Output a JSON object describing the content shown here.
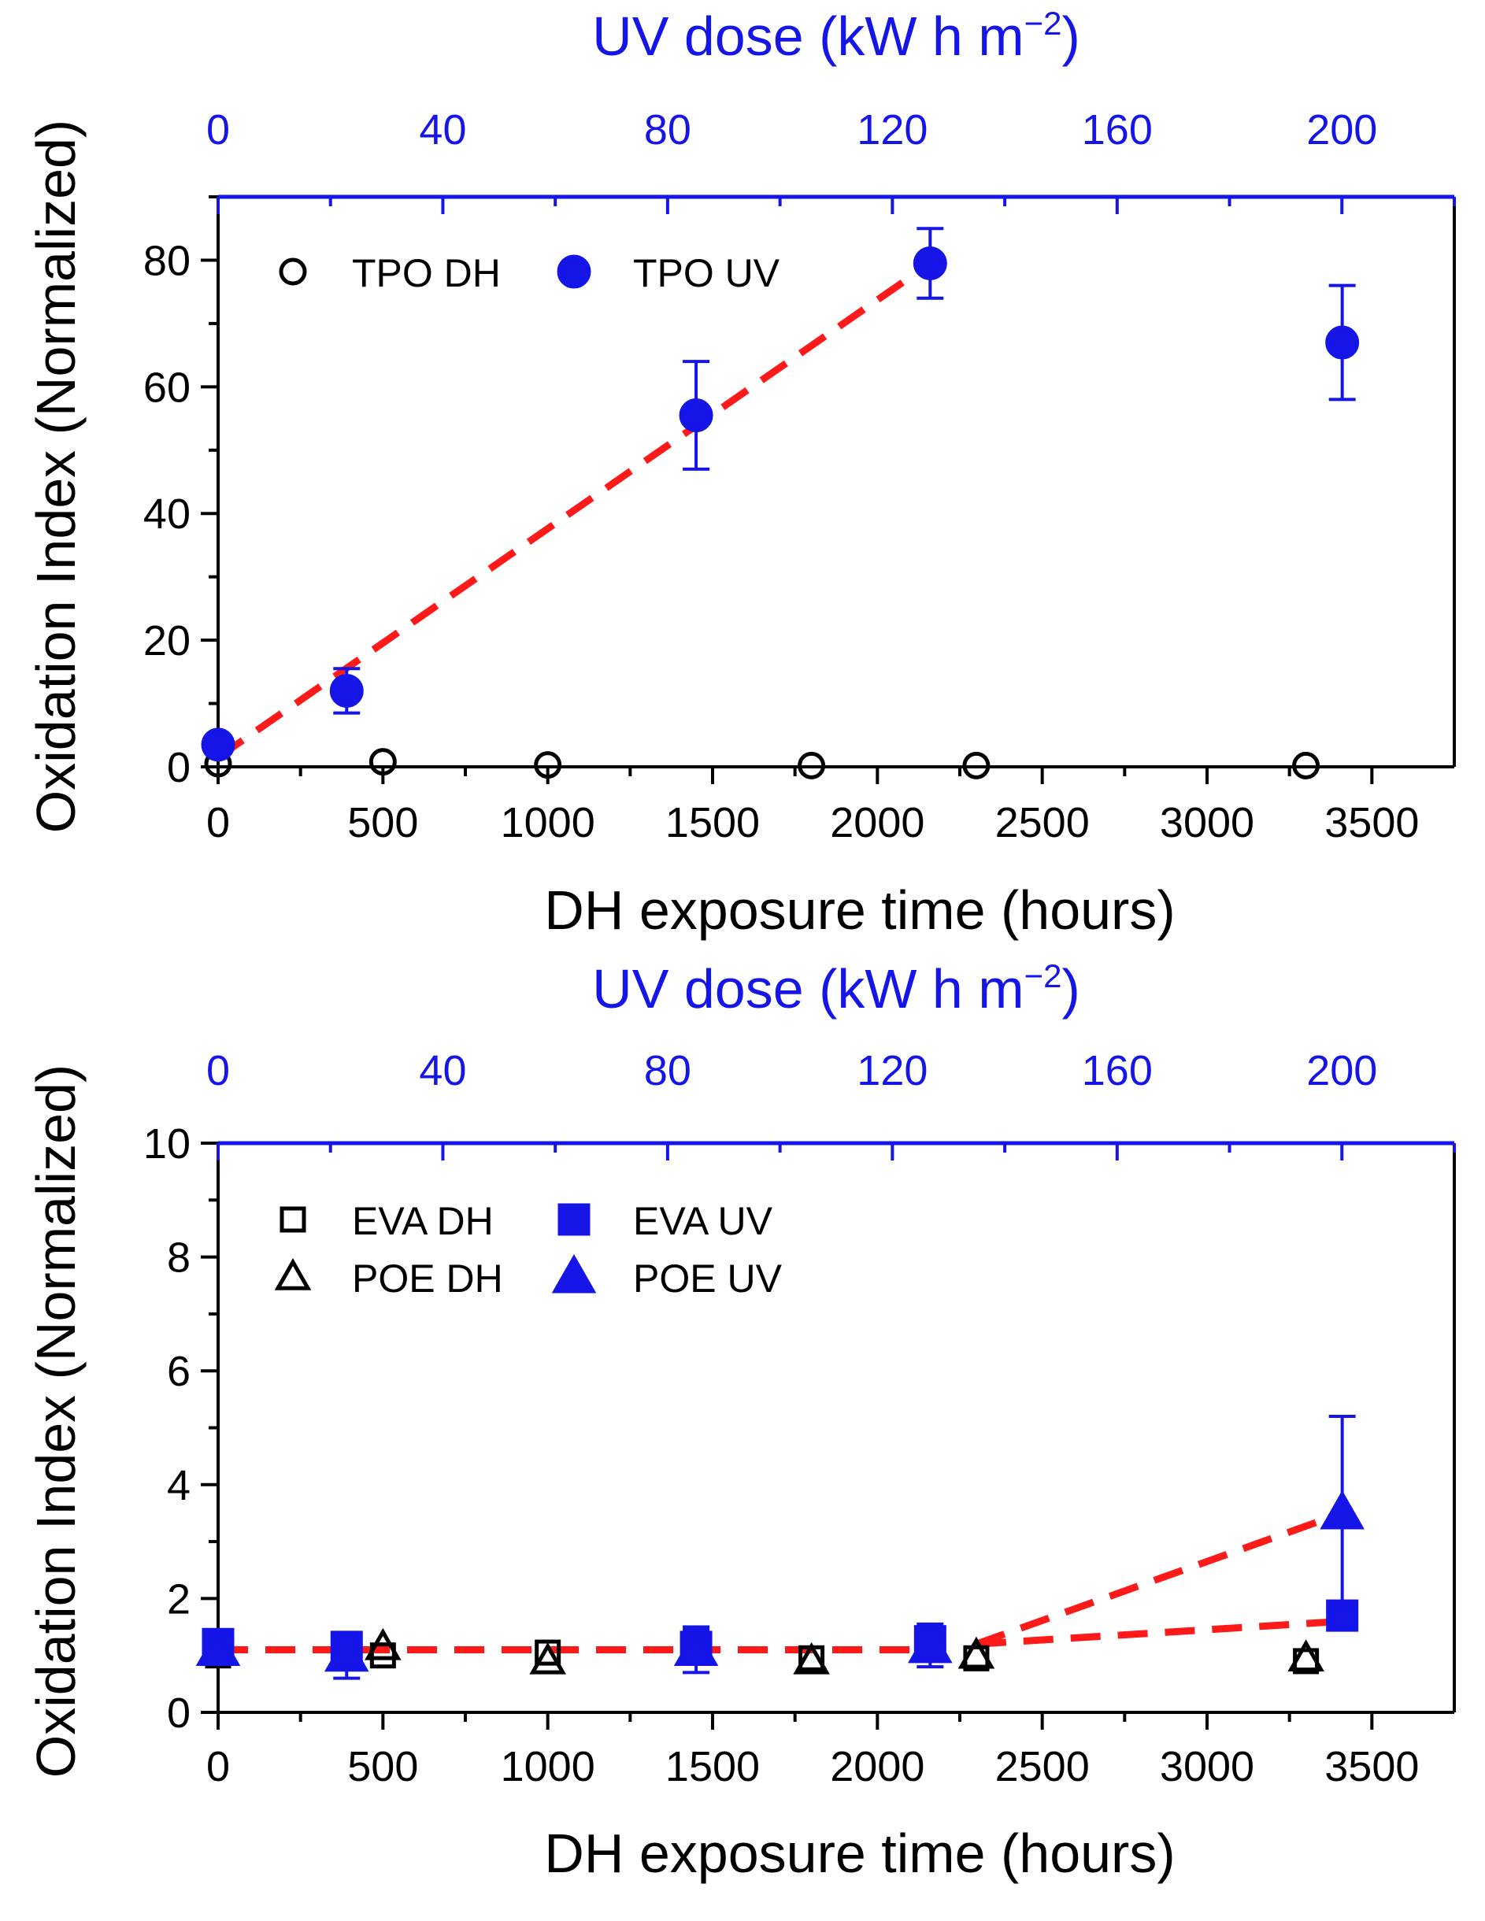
{
  "colors": {
    "uv": "#1515e8",
    "dh": "#000000",
    "fit": "#ff1a1a",
    "top_axis": "#1515e8"
  },
  "chart_data": [
    {
      "type": "scatter",
      "id": "top",
      "title": "",
      "xlabel": "DH exposure time (hours)",
      "ylabel": "Oxidation Index (Normalized)",
      "x2label_main": "UV dose (kW h m",
      "x2label_sup": "−2",
      "x2label_end": ")",
      "xlim": [
        0,
        3750
      ],
      "ylim": [
        0,
        90
      ],
      "x2lim": [
        0,
        220
      ],
      "xticks": [
        0,
        500,
        1000,
        1500,
        2000,
        2500,
        3000,
        3500
      ],
      "xtick_labels": [
        "0",
        "500",
        "1000",
        "1500",
        "2000",
        "2500",
        "3000",
        "3500"
      ],
      "yticks": [
        0,
        20,
        40,
        60,
        80
      ],
      "ytick_labels": [
        "0",
        "20",
        "40",
        "60",
        "80"
      ],
      "x2ticks": [
        0,
        40,
        80,
        120,
        160,
        200
      ],
      "x2tick_labels": [
        "0",
        "40",
        "80",
        "120",
        "160",
        "200"
      ],
      "legend_position": "top-left",
      "series": [
        {
          "name": "TPO DH",
          "marker": "circle-open",
          "color_key": "dh",
          "points": [
            {
              "x": 0,
              "y": 0.5
            },
            {
              "x": 500,
              "y": 0.8
            },
            {
              "x": 1000,
              "y": 0.3
            },
            {
              "x": 1800,
              "y": 0.2
            },
            {
              "x": 2300,
              "y": 0.2
            },
            {
              "x": 3300,
              "y": 0.2
            }
          ]
        },
        {
          "name": "TPO UV",
          "marker": "circle-filled",
          "color_key": "uv",
          "points": [
            {
              "x": 0,
              "y": 3.5
            },
            {
              "x": 390,
              "y": 12,
              "err": 3.5
            },
            {
              "x": 1450,
              "y": 55.5,
              "err": 8.5
            },
            {
              "x": 2160,
              "y": 79.5,
              "err": 5.5
            },
            {
              "x": 3410,
              "y": 67,
              "err": 9
            }
          ]
        }
      ],
      "fits": [
        {
          "color_key": "fit",
          "points": [
            {
              "x": 0,
              "y": 1.5
            },
            {
              "x": 2160,
              "y": 79.5
            }
          ]
        }
      ]
    },
    {
      "type": "scatter",
      "id": "bottom",
      "title": "",
      "xlabel": "DH exposure time (hours)",
      "ylabel": "Oxidation Index (Normalized)",
      "x2label_main": "UV dose (kW h m",
      "x2label_sup": "−2",
      "x2label_end": ")",
      "xlim": [
        0,
        3750
      ],
      "ylim": [
        0,
        10
      ],
      "x2lim": [
        0,
        220
      ],
      "xticks": [
        0,
        500,
        1000,
        1500,
        2000,
        2500,
        3000,
        3500
      ],
      "xtick_labels": [
        "0",
        "500",
        "1000",
        "1500",
        "2000",
        "2500",
        "3000",
        "3500"
      ],
      "yticks": [
        0,
        2,
        4,
        6,
        8,
        10
      ],
      "ytick_labels": [
        "0",
        "2",
        "4",
        "6",
        "8",
        "10"
      ],
      "x2ticks": [
        0,
        40,
        80,
        120,
        160,
        200
      ],
      "x2tick_labels": [
        "0",
        "40",
        "80",
        "120",
        "160",
        "200"
      ],
      "legend_position": "top-left",
      "series": [
        {
          "name": "EVA DH",
          "marker": "square-open",
          "color_key": "dh",
          "points": [
            {
              "x": 0,
              "y": 1.0
            },
            {
              "x": 500,
              "y": 1.0
            },
            {
              "x": 1000,
              "y": 1.05
            },
            {
              "x": 1800,
              "y": 0.95
            },
            {
              "x": 2300,
              "y": 0.95
            },
            {
              "x": 3300,
              "y": 0.9
            }
          ]
        },
        {
          "name": "EVA UV",
          "marker": "square-filled",
          "color_key": "uv",
          "points": [
            {
              "x": 0,
              "y": 1.2
            },
            {
              "x": 390,
              "y": 1.15
            },
            {
              "x": 1450,
              "y": 1.15,
              "err": 0.3
            },
            {
              "x": 2160,
              "y": 1.25,
              "err": 0.3
            },
            {
              "x": 3410,
              "y": 1.7,
              "err": 0.2
            }
          ]
        },
        {
          "name": "POE DH",
          "marker": "triangle-open",
          "color_key": "dh",
          "points": [
            {
              "x": 0,
              "y": 1.05
            },
            {
              "x": 500,
              "y": 1.15
            },
            {
              "x": 1000,
              "y": 0.9
            },
            {
              "x": 1800,
              "y": 0.9
            },
            {
              "x": 2300,
              "y": 1.0
            },
            {
              "x": 3300,
              "y": 0.95
            }
          ]
        },
        {
          "name": "POE UV",
          "marker": "triangle-filled",
          "color_key": "uv",
          "points": [
            {
              "x": 0,
              "y": 1.1
            },
            {
              "x": 390,
              "y": 1.0,
              "err": 0.4
            },
            {
              "x": 1450,
              "y": 1.1,
              "err": 0.4
            },
            {
              "x": 2160,
              "y": 1.15,
              "err": 0.35
            },
            {
              "x": 3410,
              "y": 3.5,
              "err": 1.7
            }
          ]
        }
      ],
      "fits": [
        {
          "color_key": "fit",
          "points": [
            {
              "x": 0,
              "y": 1.1
            },
            {
              "x": 2160,
              "y": 1.1
            }
          ]
        },
        {
          "color_key": "fit",
          "points": [
            {
              "x": 2300,
              "y": 1.2
            },
            {
              "x": 3410,
              "y": 3.5
            }
          ]
        },
        {
          "color_key": "fit",
          "points": [
            {
              "x": 2300,
              "y": 1.2
            },
            {
              "x": 3410,
              "y": 1.6
            }
          ]
        }
      ]
    }
  ]
}
